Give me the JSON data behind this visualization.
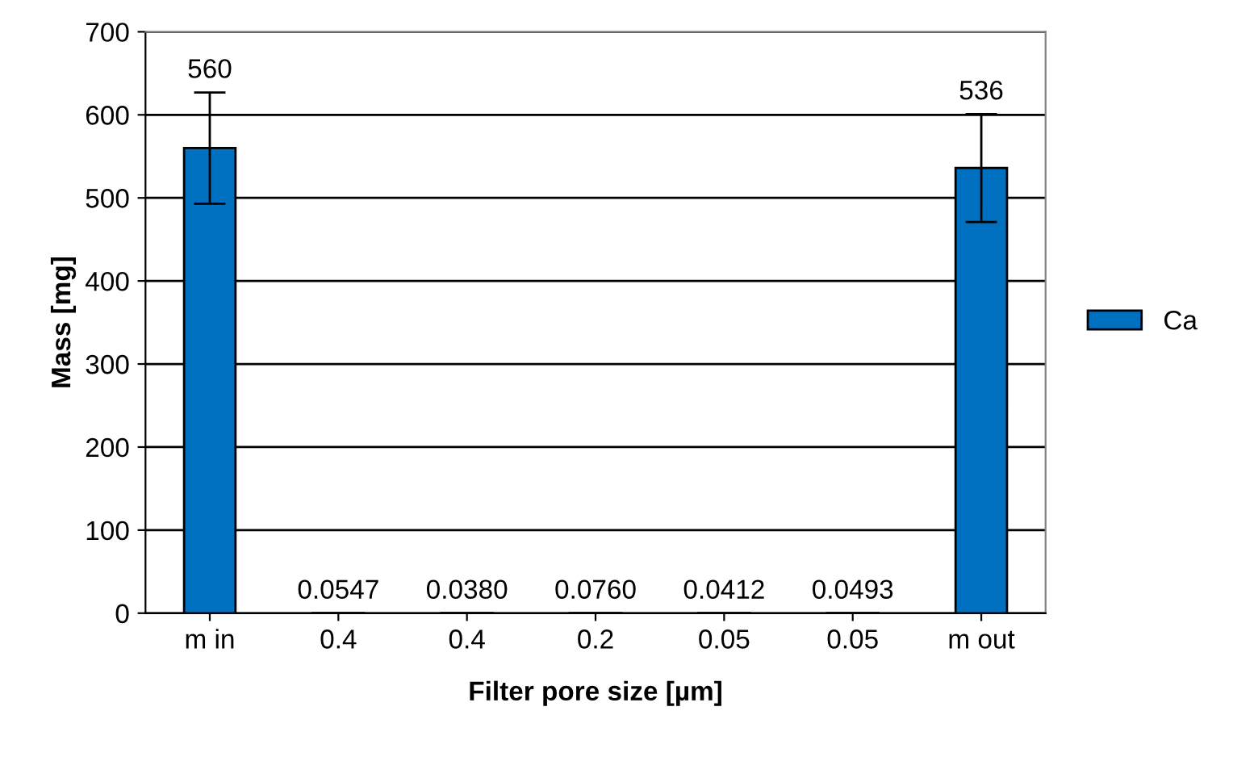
{
  "chart_data": {
    "type": "bar",
    "xlabel": "Filter pore size [µm]",
    "ylabel": "Mass [mg]",
    "categories": [
      "m in",
      "0.4",
      "0.4",
      "0.2",
      "0.05",
      "0.05",
      "m out"
    ],
    "series": [
      {
        "name": "Ca",
        "color": "#0070c0",
        "values": [
          560,
          0.0547,
          0.038,
          0.076,
          0.0412,
          0.0493,
          536
        ],
        "errors": [
          67,
          null,
          null,
          null,
          null,
          null,
          65
        ],
        "value_labels": [
          "560",
          "0.0547",
          "0.0380",
          "0.0760",
          "0.0412",
          "0.0493",
          "536"
        ]
      }
    ],
    "ylim": [
      0,
      700
    ],
    "yticks": [
      0,
      100,
      200,
      300,
      400,
      500,
      600,
      700
    ],
    "grid": "y",
    "legend": "right"
  }
}
